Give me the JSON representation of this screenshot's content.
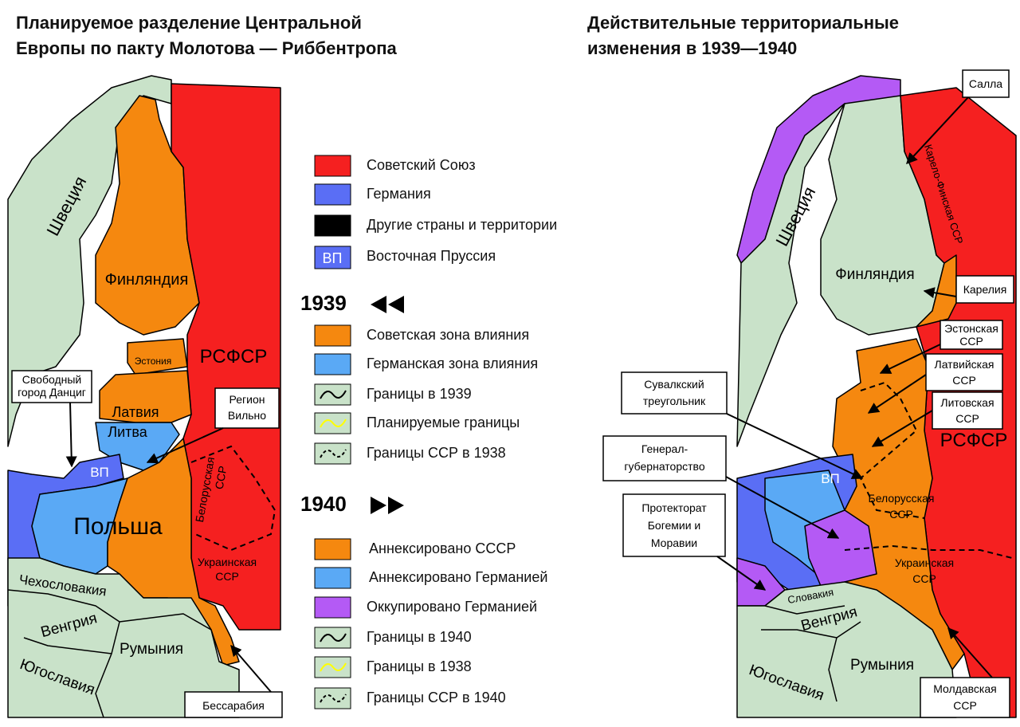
{
  "left_map": {
    "title_lines": [
      "Планируемое разделение Центральной",
      "Европы по пакту Молотова — Риббентропа"
    ],
    "labels": {
      "sweden": "Швеция",
      "finland": "Финляндия",
      "estonia": "Эстония",
      "latvia": "Латвия",
      "lithuania": "Литва",
      "east_prussia": "ВП",
      "poland": "Польша",
      "rsfsr": "РСФСР",
      "belarus_lines": [
        "Белорусская",
        "ССР"
      ],
      "ukraine_lines": [
        "Украинская",
        "ССР"
      ],
      "czechoslovakia": "Чехословакия",
      "hungary": "Венгрия",
      "romania": "Румыния",
      "yugoslavia": "Югославия"
    },
    "callouts": {
      "danzig": [
        "Свободный",
        "город Данциг"
      ],
      "vilno": [
        "Регион",
        "Вильно"
      ],
      "bessarabia": [
        "Бессарабия"
      ]
    }
  },
  "right_map": {
    "title_lines": [
      "Действительные территориальные",
      "изменения в 1939—1940"
    ],
    "labels": {
      "sweden": "Швеция",
      "finland": "Финляндия",
      "karelo_finnish": "Карело-Финская ССР",
      "rsfsr": "РСФСР",
      "east_prussia": "ВП",
      "belarus_lines": [
        "Белорусская",
        "ССР"
      ],
      "ukraine_lines": [
        "Украинская",
        "ССР"
      ],
      "slovakia": "Словакия",
      "hungary": "Венгрия",
      "romania": "Румыния",
      "yugoslavia": "Югославия"
    },
    "callouts": {
      "salla": [
        "Салла"
      ],
      "karelia": [
        "Карелия"
      ],
      "estonia": [
        "Эстонская",
        "ССР"
      ],
      "latvia": [
        "Латвийская",
        "ССР"
      ],
      "lithuania": [
        "Литовская",
        "ССР"
      ],
      "suwalki": [
        "Сувалкский",
        "треугольник"
      ],
      "general_government": [
        "Генерал-",
        "губернаторство"
      ],
      "protectorate": [
        "Протекторат",
        "Богемии и",
        "Моравии"
      ],
      "moldavia": [
        "Молдавская",
        "ССР"
      ]
    }
  },
  "legend": {
    "items": [
      "Советский Союз",
      "Германия",
      "Другие страны и территории",
      "Восточная Пруссия"
    ],
    "swatch_text": "ВП",
    "section_1939": {
      "title": "1939",
      "items": [
        "Советская зона влияния",
        "Германская зона влияния",
        "Границы в 1939",
        "Планируемые границы",
        "Границы ССР в 1938"
      ]
    },
    "section_1940": {
      "title": "1940",
      "items": [
        "Аннексировано СССР",
        "Аннексировано Германией",
        "Оккупировано Германией",
        "Границы в 1940",
        "Границы в 1938",
        "Границы ССР в 1940"
      ]
    }
  }
}
